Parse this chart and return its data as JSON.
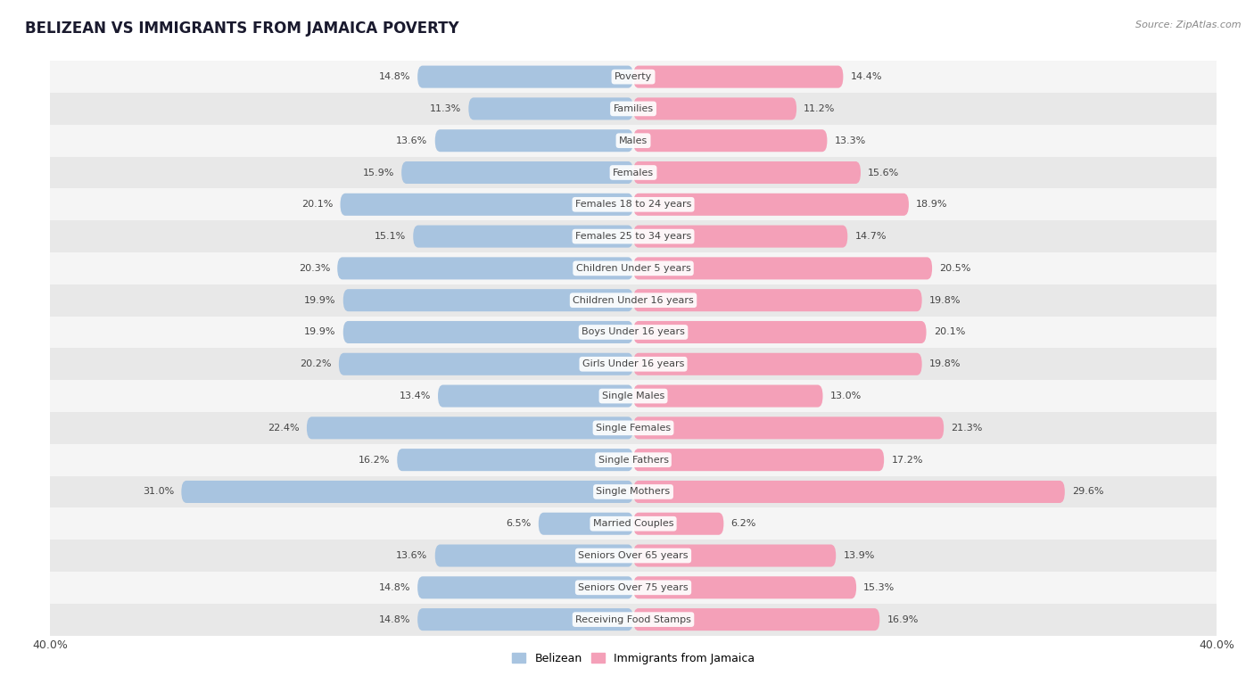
{
  "title": "BELIZEAN VS IMMIGRANTS FROM JAMAICA POVERTY",
  "source": "Source: ZipAtlas.com",
  "categories": [
    "Poverty",
    "Families",
    "Males",
    "Females",
    "Females 18 to 24 years",
    "Females 25 to 34 years",
    "Children Under 5 years",
    "Children Under 16 years",
    "Boys Under 16 years",
    "Girls Under 16 years",
    "Single Males",
    "Single Females",
    "Single Fathers",
    "Single Mothers",
    "Married Couples",
    "Seniors Over 65 years",
    "Seniors Over 75 years",
    "Receiving Food Stamps"
  ],
  "belizean": [
    14.8,
    11.3,
    13.6,
    15.9,
    20.1,
    15.1,
    20.3,
    19.9,
    19.9,
    20.2,
    13.4,
    22.4,
    16.2,
    31.0,
    6.5,
    13.6,
    14.8,
    14.8
  ],
  "jamaica": [
    14.4,
    11.2,
    13.3,
    15.6,
    18.9,
    14.7,
    20.5,
    19.8,
    20.1,
    19.8,
    13.0,
    21.3,
    17.2,
    29.6,
    6.2,
    13.9,
    15.3,
    16.9
  ],
  "belizean_color": "#a8c4e0",
  "jamaica_color": "#f4a0b8",
  "label_color": "#444444",
  "bg_color": "#ffffff",
  "row_bg_even": "#f5f5f5",
  "row_bg_odd": "#e8e8e8",
  "xlim": 40.0,
  "bar_height": 0.7,
  "legend_label_left": "Belizean",
  "legend_label_right": "Immigrants from Jamaica",
  "title_color": "#1a1a2e",
  "source_color": "#888888",
  "value_color": "#444444"
}
